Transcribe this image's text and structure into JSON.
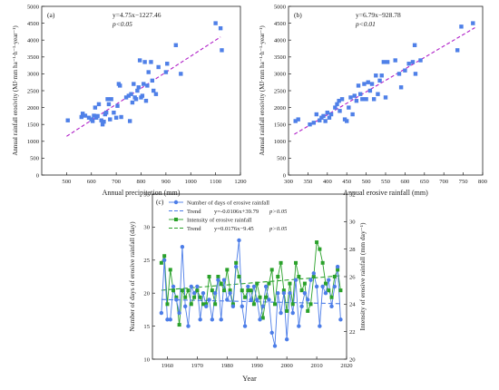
{
  "chart_data": [
    {
      "panel_label": "(a)",
      "type": "scatter",
      "xlabel": "Annual precipitation (mm)",
      "ylabel": "Annual rainfall erosivity (MJ·mm ha⁻¹·h⁻¹·year⁻¹)",
      "xlim": [
        400,
        1200
      ],
      "ylim": [
        0,
        5000
      ],
      "xticks": [
        500,
        600,
        700,
        800,
        900,
        1000,
        1100,
        1200
      ],
      "yticks": [
        0,
        500,
        1000,
        1500,
        2000,
        2500,
        3000,
        3500,
        4000,
        4500,
        5000
      ],
      "equation": "y=4.75x−1227.46",
      "significance": "p<0.05",
      "fit": {
        "slope": 4.75,
        "intercept": -1227.46,
        "x_range": [
          500,
          1120
        ]
      },
      "points": [
        [
          505,
          1620
        ],
        [
          560,
          1720
        ],
        [
          565,
          1820
        ],
        [
          575,
          1760
        ],
        [
          590,
          1700
        ],
        [
          600,
          1650
        ],
        [
          605,
          1600
        ],
        [
          610,
          1760
        ],
        [
          615,
          2000
        ],
        [
          620,
          1700
        ],
        [
          625,
          1750
        ],
        [
          630,
          2100
        ],
        [
          640,
          1620
        ],
        [
          645,
          1500
        ],
        [
          650,
          1580
        ],
        [
          655,
          1800
        ],
        [
          660,
          1850
        ],
        [
          665,
          2250
        ],
        [
          670,
          2100
        ],
        [
          675,
          1650
        ],
        [
          680,
          2250
        ],
        [
          690,
          1850
        ],
        [
          700,
          1700
        ],
        [
          705,
          2050
        ],
        [
          710,
          2700
        ],
        [
          715,
          2650
        ],
        [
          720,
          1720
        ],
        [
          740,
          2300
        ],
        [
          750,
          2350
        ],
        [
          755,
          1600
        ],
        [
          760,
          2400
        ],
        [
          765,
          2150
        ],
        [
          770,
          2700
        ],
        [
          775,
          2300
        ],
        [
          780,
          2250
        ],
        [
          785,
          2500
        ],
        [
          790,
          2600
        ],
        [
          795,
          3400
        ],
        [
          800,
          2300
        ],
        [
          805,
          2350
        ],
        [
          810,
          2700
        ],
        [
          815,
          3350
        ],
        [
          820,
          2200
        ],
        [
          825,
          2650
        ],
        [
          830,
          3050
        ],
        [
          840,
          3350
        ],
        [
          845,
          2800
        ],
        [
          850,
          2500
        ],
        [
          860,
          2400
        ],
        [
          870,
          3200
        ],
        [
          900,
          3050
        ],
        [
          905,
          3300
        ],
        [
          940,
          3850
        ],
        [
          960,
          3000
        ],
        [
          1100,
          4500
        ],
        [
          1120,
          4350
        ],
        [
          1125,
          3700
        ]
      ]
    },
    {
      "panel_label": "(b)",
      "type": "scatter",
      "xlabel": "Annual erosive rainfall (mm)",
      "ylabel": "Annual rainfall erosivity (MJ·mm ha⁻¹·h⁻¹·year⁻¹)",
      "xlim": [
        300,
        800
      ],
      "ylim": [
        0,
        5000
      ],
      "xticks": [
        300,
        350,
        400,
        450,
        500,
        550,
        600,
        650,
        700,
        750,
        800
      ],
      "yticks": [
        0,
        500,
        1000,
        1500,
        2000,
        2500,
        3000,
        3500,
        4000,
        4500,
        5000
      ],
      "equation": "y=6.79x−928.78",
      "significance": "p<0.01",
      "fit": {
        "slope": 6.79,
        "intercept": -928.78,
        "x_range": [
          315,
          780
        ]
      },
      "points": [
        [
          318,
          1600
        ],
        [
          325,
          1650
        ],
        [
          355,
          1500
        ],
        [
          365,
          1550
        ],
        [
          372,
          1800
        ],
        [
          380,
          1620
        ],
        [
          385,
          1700
        ],
        [
          390,
          1750
        ],
        [
          395,
          1600
        ],
        [
          400,
          1850
        ],
        [
          405,
          1700
        ],
        [
          410,
          1800
        ],
        [
          420,
          2000
        ],
        [
          425,
          2100
        ],
        [
          430,
          2200
        ],
        [
          432,
          1900
        ],
        [
          438,
          2250
        ],
        [
          445,
          1650
        ],
        [
          450,
          1600
        ],
        [
          455,
          2000
        ],
        [
          460,
          2300
        ],
        [
          465,
          1800
        ],
        [
          470,
          2350
        ],
        [
          475,
          2200
        ],
        [
          480,
          2650
        ],
        [
          485,
          2400
        ],
        [
          490,
          2250
        ],
        [
          495,
          2700
        ],
        [
          500,
          2250
        ],
        [
          505,
          2750
        ],
        [
          510,
          2500
        ],
        [
          515,
          2700
        ],
        [
          520,
          2250
        ],
        [
          525,
          2950
        ],
        [
          530,
          2400
        ],
        [
          535,
          2800
        ],
        [
          540,
          2950
        ],
        [
          545,
          3350
        ],
        [
          550,
          2300
        ],
        [
          555,
          3350
        ],
        [
          575,
          3400
        ],
        [
          585,
          3000
        ],
        [
          590,
          2600
        ],
        [
          600,
          3100
        ],
        [
          610,
          3300
        ],
        [
          620,
          3350
        ],
        [
          625,
          3850
        ],
        [
          627,
          3000
        ],
        [
          640,
          3400
        ],
        [
          735,
          3700
        ],
        [
          745,
          4400
        ],
        [
          775,
          4500
        ]
      ]
    },
    {
      "panel_label": "(c)",
      "type": "line",
      "xlabel": "Year",
      "ylabel_left": "Number of days of erosive rainfall (day)",
      "ylabel_right": "Intensity of erosive rainfall (mm day⁻¹)",
      "xlim": [
        1955,
        2020
      ],
      "ylim_left": [
        10,
        35
      ],
      "ylim_right": [
        20,
        32
      ],
      "xticks": [
        1960,
        1970,
        1980,
        1990,
        2000,
        2010,
        2020
      ],
      "yticks_left": [
        10,
        15,
        20,
        25,
        30,
        35
      ],
      "yticks_right": [
        20,
        22,
        24,
        26,
        28,
        30,
        32
      ],
      "x": [
        1958,
        1959,
        1960,
        1961,
        1962,
        1963,
        1964,
        1965,
        1966,
        1967,
        1968,
        1969,
        1970,
        1971,
        1972,
        1973,
        1974,
        1975,
        1976,
        1977,
        1978,
        1979,
        1980,
        1981,
        1982,
        1983,
        1984,
        1985,
        1986,
        1987,
        1988,
        1989,
        1990,
        1991,
        1992,
        1993,
        1994,
        1995,
        1996,
        1997,
        1998,
        1999,
        2000,
        2001,
        2002,
        2003,
        2004,
        2005,
        2006,
        2007,
        2008,
        2009,
        2010,
        2011,
        2012,
        2013,
        2014,
        2015,
        2016,
        2017,
        2018
      ],
      "series": [
        {
          "name": "Number of days of erosive rainfall",
          "axis": "left",
          "color": "#4c7de8",
          "marker": "circle",
          "values": [
            17,
            25,
            16,
            16,
            21,
            19,
            17,
            27,
            18,
            15,
            21,
            20,
            21,
            16,
            20,
            18,
            19,
            16,
            20,
            22,
            16,
            22,
            19,
            20,
            18,
            24,
            28,
            18,
            15,
            21,
            19,
            21,
            19,
            16,
            18,
            21,
            19,
            14,
            12,
            20,
            17,
            20,
            13,
            20,
            17,
            22,
            15,
            18,
            20,
            19,
            22,
            23,
            21,
            15,
            21,
            20,
            22,
            18,
            21,
            24,
            16
          ]
        },
        {
          "name": "Trend",
          "axis": "left",
          "color": "#4c7de8",
          "style": "dashed",
          "equation": "y=-0.0106x+39.79",
          "significance": "p>0.05",
          "slope": -0.0106,
          "intercept": 39.79
        },
        {
          "name": "Intensity of erosive rainfall",
          "axis": "right",
          "color": "#2aa12a",
          "marker": "square",
          "values": [
            27,
            27.5,
            24,
            26.5,
            25,
            24.5,
            22.5,
            25,
            24.5,
            25,
            24,
            24.5,
            25,
            24.5,
            24,
            24,
            26,
            25,
            24,
            26,
            25.5,
            25,
            26.5,
            25,
            24,
            27,
            26,
            25,
            24.5,
            25,
            25,
            24,
            25.5,
            24.5,
            23,
            24.5,
            25.5,
            26.5,
            24,
            26,
            27,
            25,
            23.5,
            25.5,
            24,
            27,
            26,
            25,
            25.5,
            23.5,
            24,
            26,
            28.5,
            28,
            27,
            25.5,
            25,
            24.5,
            26,
            26.5,
            25
          ]
        },
        {
          "name": "Trend",
          "axis": "right",
          "color": "#2aa12a",
          "style": "dashed",
          "equation": "y=0.0176x−9.45",
          "significance": "p>0.05",
          "slope": 0.0176,
          "intercept": -9.45
        }
      ]
    }
  ]
}
